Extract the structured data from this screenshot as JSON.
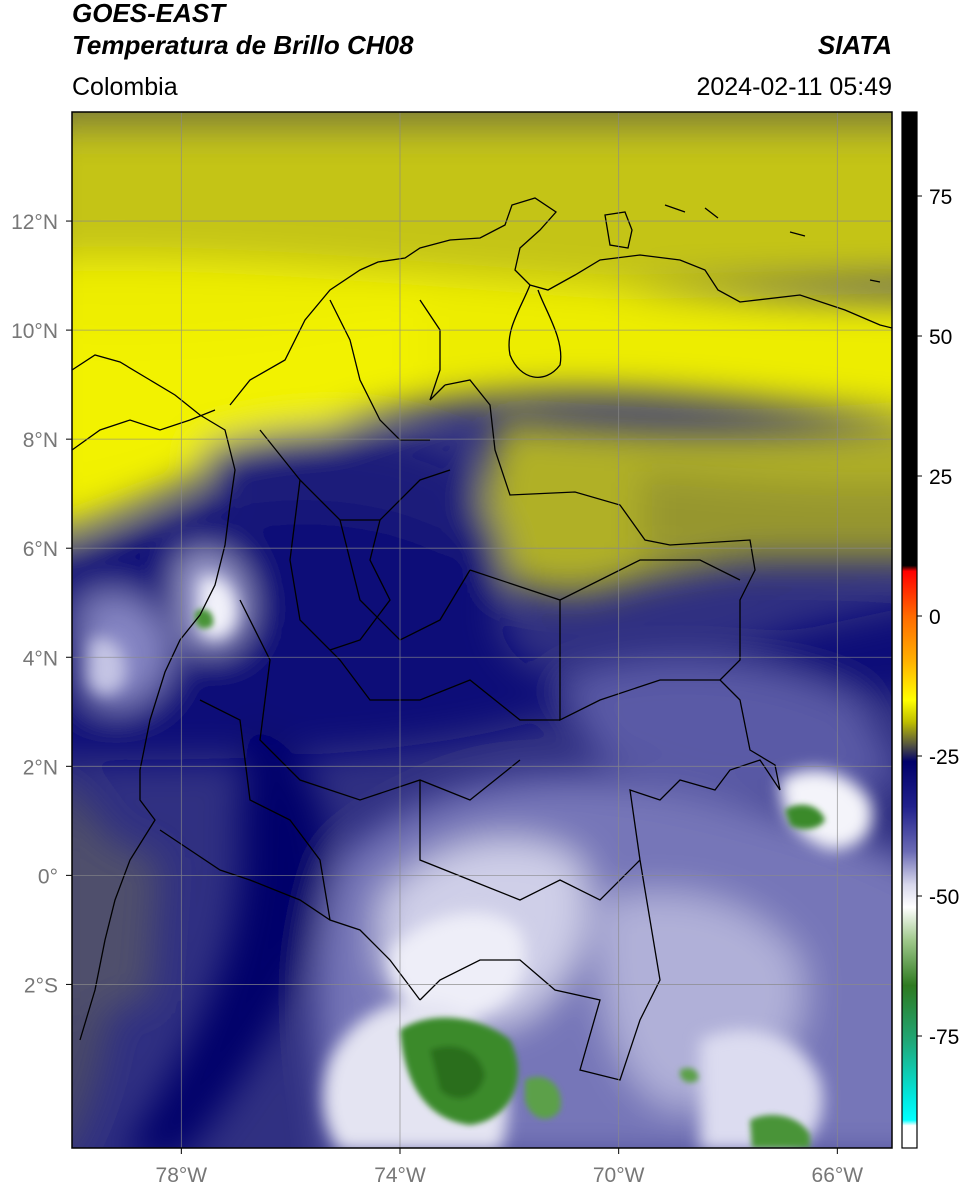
{
  "header": {
    "satellite": "GOES-EAST",
    "product": "Temperatura de Brillo CH08",
    "organization": "SIATA",
    "region": "Colombia",
    "datetime": "2024-02-11 05:49"
  },
  "axes": {
    "lon_ticks": [
      {
        "value": -78,
        "label": "78°W"
      },
      {
        "value": -74,
        "label": "74°W"
      },
      {
        "value": -70,
        "label": "70°W"
      },
      {
        "value": -66,
        "label": "66°W"
      }
    ],
    "lat_ticks": [
      {
        "value": 12,
        "label": "12°N"
      },
      {
        "value": 10,
        "label": "10°N"
      },
      {
        "value": 8,
        "label": "8°N"
      },
      {
        "value": 6,
        "label": "6°N"
      },
      {
        "value": 4,
        "label": "4°N"
      },
      {
        "value": 2,
        "label": "2°N"
      },
      {
        "value": 0,
        "label": "0°"
      },
      {
        "value": -2,
        "label": "2°S"
      }
    ],
    "lon_range": [
      -80,
      -65
    ],
    "lat_range": [
      -5,
      14
    ],
    "grid": true
  },
  "colorbar": {
    "range": [
      -95,
      90
    ],
    "ticks": [
      {
        "value": 75,
        "label": "75"
      },
      {
        "value": 50,
        "label": "50"
      },
      {
        "value": 25,
        "label": "25"
      },
      {
        "value": 0,
        "label": "0"
      },
      {
        "value": -25,
        "label": "-25"
      },
      {
        "value": -50,
        "label": "-50"
      },
      {
        "value": -75,
        "label": "-75"
      }
    ],
    "stops": [
      {
        "value": 90,
        "color": "#000000"
      },
      {
        "value": 9,
        "color": "#000000"
      },
      {
        "value": 8,
        "color": "#ff0000"
      },
      {
        "value": 0,
        "color": "#ff6a00"
      },
      {
        "value": -8,
        "color": "#ffb000"
      },
      {
        "value": -15,
        "color": "#ffff00"
      },
      {
        "value": -19,
        "color": "#bdbd00"
      },
      {
        "value": -23,
        "color": "#555540"
      },
      {
        "value": -26,
        "color": "#00006a"
      },
      {
        "value": -34,
        "color": "#20208c"
      },
      {
        "value": -42,
        "color": "#6a6ab4"
      },
      {
        "value": -48,
        "color": "#d8d8ec"
      },
      {
        "value": -52,
        "color": "#ffffff"
      },
      {
        "value": -58,
        "color": "#9ec88a"
      },
      {
        "value": -66,
        "color": "#2e7a20"
      },
      {
        "value": -76,
        "color": "#20a878"
      },
      {
        "value": -86,
        "color": "#00e8e0"
      },
      {
        "value": -90,
        "color": "#00ffff"
      },
      {
        "value": -91,
        "color": "#ffffff"
      },
      {
        "value": -95,
        "color": "#ffffff"
      }
    ]
  },
  "colors": {
    "cold_cloud_top": "#00006a",
    "moist_mid": "#3a3a96",
    "dry_yellow": "#e8e800",
    "dry_olive": "#a6a628",
    "very_cold": "#2e7a20"
  }
}
